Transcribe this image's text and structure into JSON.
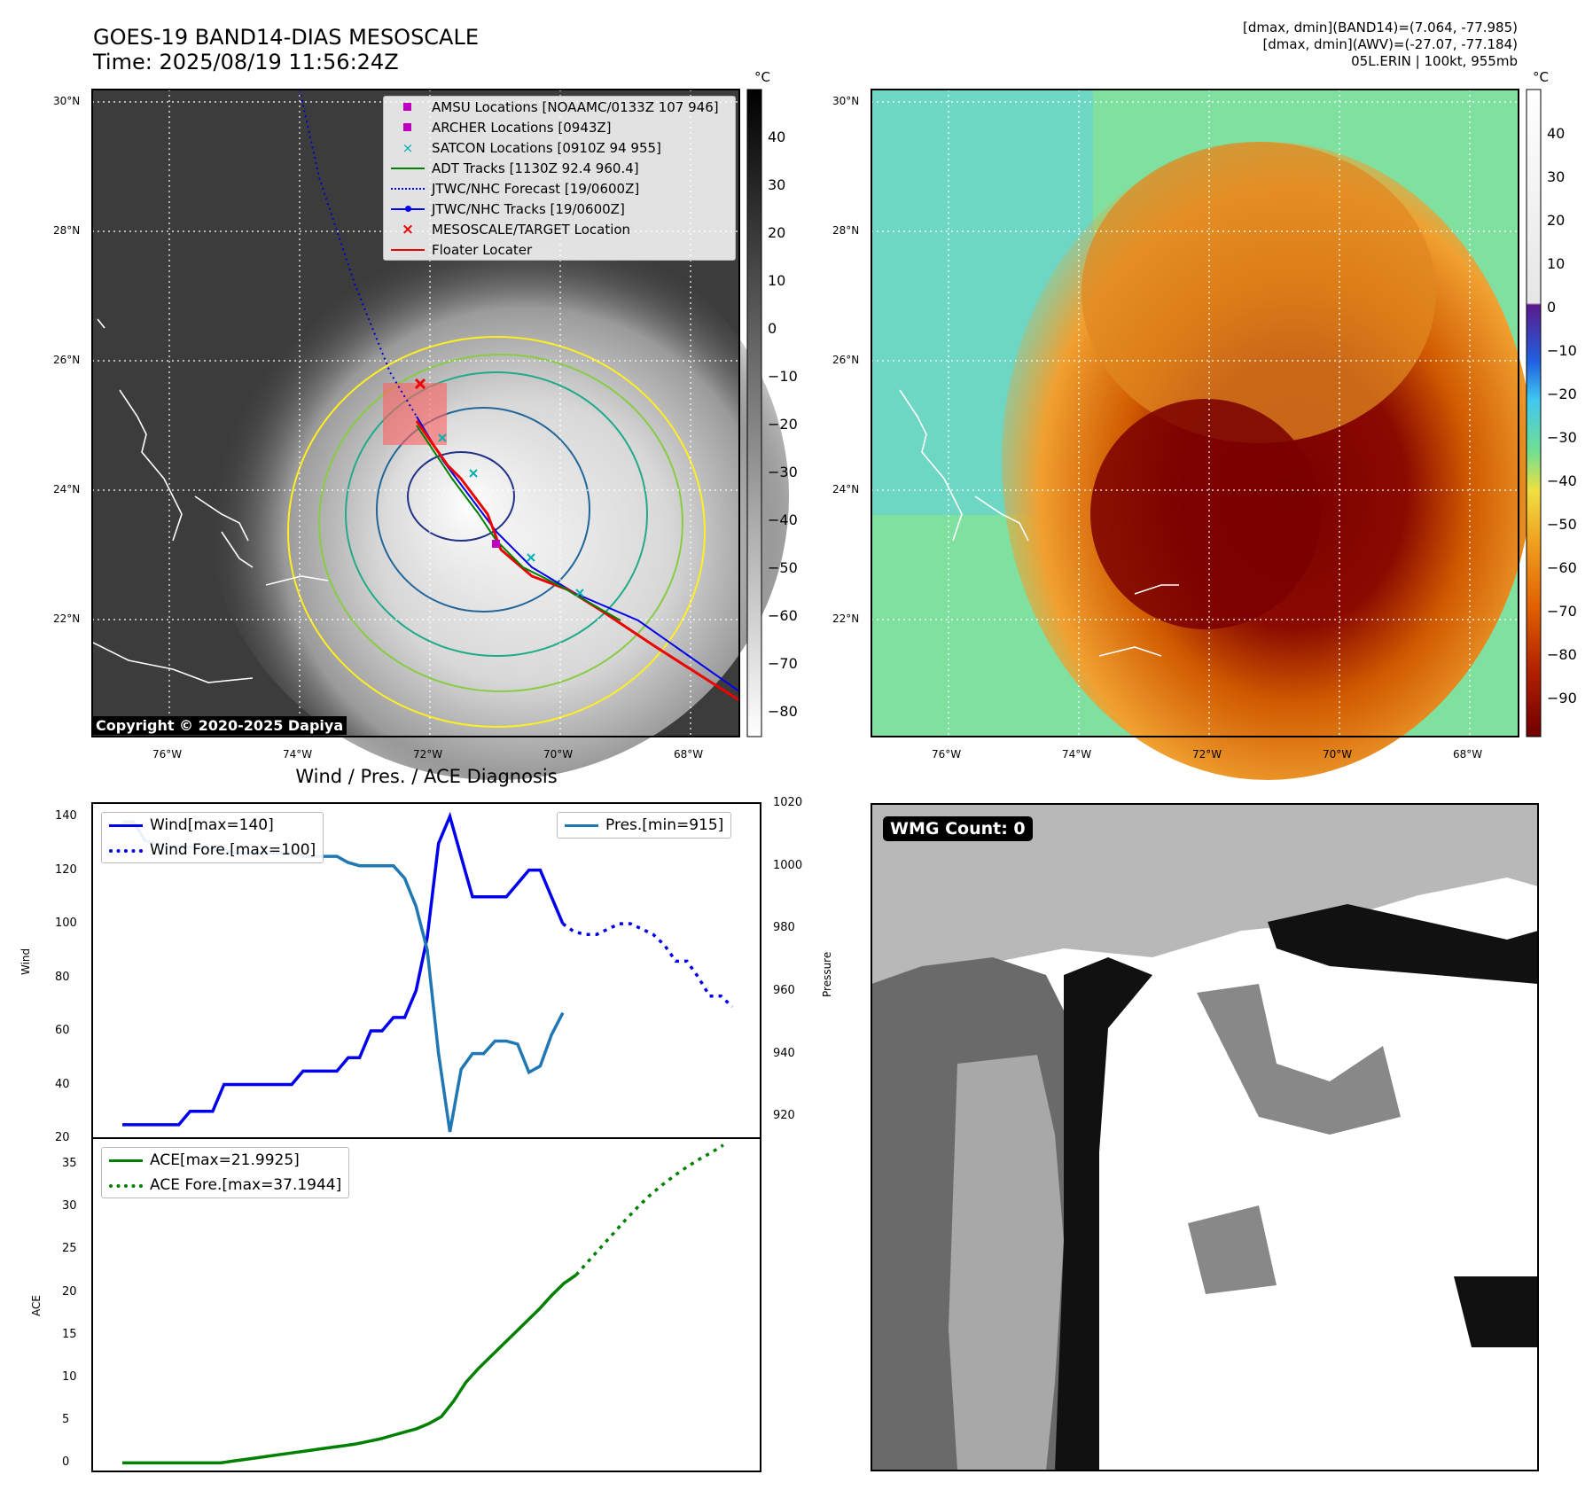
{
  "header": {
    "title_line1": "GOES-19 BAND14-DIAS MESOSCALE",
    "title_line2": "Time: 2025/08/19 11:56:24Z",
    "info_line1": "[dmax, dmin](BAND14)=(7.064, -77.985)",
    "info_line2": "[dmax, dmin](AWV)=(-27.07, -77.184)",
    "info_line3": "05L.ERIN | 100kt, 955mb",
    "copyright": "Copyright © 2020-2025 Dapiya"
  },
  "map": {
    "lat_labels": [
      "30°N",
      "28°N",
      "26°N",
      "24°N",
      "22°N"
    ],
    "lon_labels": [
      "76°W",
      "74°W",
      "72°W",
      "70°W",
      "68°W"
    ],
    "legend": [
      {
        "label": "AMSU Locations [NOAAMC/0133Z 107 946]",
        "symbol": "square",
        "color": "#c000c0"
      },
      {
        "label": "ARCHER Locations [0943Z]",
        "symbol": "square",
        "color": "#c000c0"
      },
      {
        "label": "SATCON Locations [0910Z 94 955]",
        "symbol": "x",
        "color": "#00b0b0"
      },
      {
        "label": "ADT Tracks [1130Z 92.4 960.4]",
        "symbol": "line",
        "color": "#008000"
      },
      {
        "label": "JTWC/NHC Forecast [19/0600Z]",
        "symbol": "dotted",
        "color": "#0000cc"
      },
      {
        "label": "JTWC/NHC Tracks [19/0600Z]",
        "symbol": "line-dot",
        "color": "#0000ee"
      },
      {
        "label": "MESOSCALE/TARGET Location",
        "symbol": "x",
        "color": "#ee0000"
      },
      {
        "label": "Floater Locater",
        "symbol": "line",
        "color": "#ee0000"
      }
    ]
  },
  "colorbar_gray": {
    "unit": "°C",
    "ticks": [
      "40",
      "30",
      "20",
      "10",
      "0",
      "−10",
      "−20",
      "−30",
      "−40",
      "−50",
      "−60",
      "−70",
      "−80"
    ]
  },
  "colorbar_color": {
    "unit": "°C",
    "ticks": [
      "40",
      "30",
      "20",
      "10",
      "0",
      "−10",
      "−20",
      "−30",
      "−40",
      "−50",
      "−60",
      "−70",
      "−80",
      "−90"
    ]
  },
  "wmg": {
    "label": "WMG Count: 0"
  },
  "chart_data": [
    {
      "type": "line",
      "title": "Wind / Pres. / ACE Diagnosis",
      "ylabel": "Wind",
      "y2label": "Pressure",
      "ylim": [
        20,
        145
      ],
      "y2lim": [
        913,
        1020
      ],
      "yticks": [
        "140",
        "120",
        "100",
        "80",
        "60",
        "40",
        "20"
      ],
      "y2ticks": [
        "1020",
        "1000",
        "980",
        "960",
        "940",
        "920"
      ],
      "series": [
        {
          "name": "Wind[max=140]",
          "color": "#0000ee",
          "style": "solid",
          "values": [
            25,
            25,
            25,
            25,
            25,
            25,
            30,
            30,
            30,
            40,
            40,
            40,
            40,
            40,
            40,
            40,
            45,
            45,
            45,
            45,
            50,
            50,
            60,
            60,
            65,
            65,
            75,
            95,
            130,
            140,
            125,
            110,
            110,
            110,
            110,
            115,
            120,
            120,
            110,
            100
          ]
        },
        {
          "name": "Wind Fore.[max=100]",
          "color": "#0000ee",
          "style": "dotted",
          "values": [
            100,
            97,
            96,
            96,
            98,
            100,
            100,
            98,
            96,
            92,
            86,
            86,
            80,
            73,
            73,
            69
          ]
        },
        {
          "name": "Pres.[min=915]",
          "color": "#1f77b4",
          "style": "solid",
          "axis": "right",
          "values": [
            1014,
            1014,
            1008,
            1007,
            1006,
            1006,
            1006,
            1006,
            1005,
            1005,
            1004,
            1004,
            1004,
            1004,
            1004,
            1004,
            1003,
            1003,
            1003,
            1003,
            1001,
            1000,
            1000,
            1000,
            1000,
            996,
            987,
            973,
            940,
            915,
            935,
            940,
            940,
            944,
            944,
            943,
            934,
            936,
            946,
            953
          ]
        }
      ]
    },
    {
      "type": "line",
      "ylabel": "ACE",
      "ylim": [
        -1,
        38
      ],
      "yticks": [
        "35",
        "30",
        "25",
        "20",
        "15",
        "10",
        "5",
        "0"
      ],
      "series": [
        {
          "name": "ACE[max=21.9925]",
          "color": "#008000",
          "style": "solid",
          "values": [
            0,
            0,
            0,
            0,
            0,
            0,
            0,
            0,
            0,
            0.2,
            0.4,
            0.6,
            0.8,
            1.0,
            1.2,
            1.4,
            1.6,
            1.8,
            2.0,
            2.2,
            2.5,
            2.8,
            3.2,
            3.6,
            4.0,
            4.6,
            5.4,
            7.2,
            9.4,
            11.0,
            12.4,
            13.8,
            15.2,
            16.6,
            18.0,
            19.6,
            21.0,
            21.9925
          ]
        },
        {
          "name": "ACE Fore.[max=37.1944]",
          "color": "#008000",
          "style": "dotted",
          "values": [
            21.9925,
            23.6,
            25.2,
            26.8,
            28.4,
            29.9,
            31.3,
            32.5,
            33.6,
            34.6,
            35.5,
            36.3,
            37.1944
          ]
        }
      ]
    }
  ]
}
